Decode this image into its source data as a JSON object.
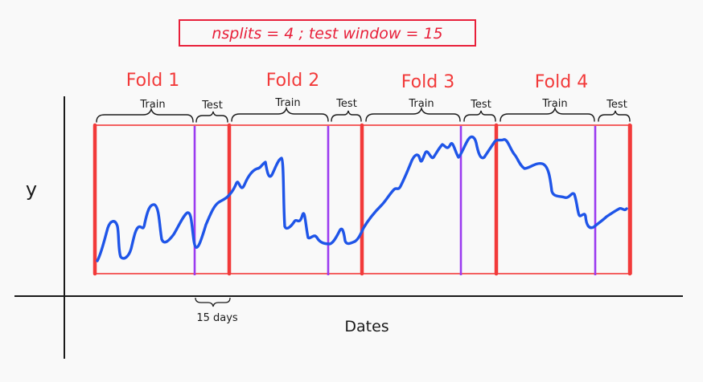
{
  "header": {
    "text": "nsplits = 4  ;  test window = 15"
  },
  "folds": [
    {
      "label": "Fold 1",
      "train_label": "Train",
      "test_label": "Test"
    },
    {
      "label": "Fold 2",
      "train_label": "Train",
      "test_label": "Test"
    },
    {
      "label": "Fold 3",
      "train_label": "Train",
      "test_label": "Test"
    },
    {
      "label": "Fold 4",
      "train_label": "Train",
      "test_label": "Test"
    }
  ],
  "axes": {
    "y_label": "y",
    "x_label": "Dates"
  },
  "gap_annotation": "15 days",
  "colors": {
    "fold_border": "#f23a3a",
    "test_divider": "#9b3bf0",
    "series": "#1f55e8",
    "ink": "#1a1a1a",
    "header_text": "#e8203a"
  }
}
